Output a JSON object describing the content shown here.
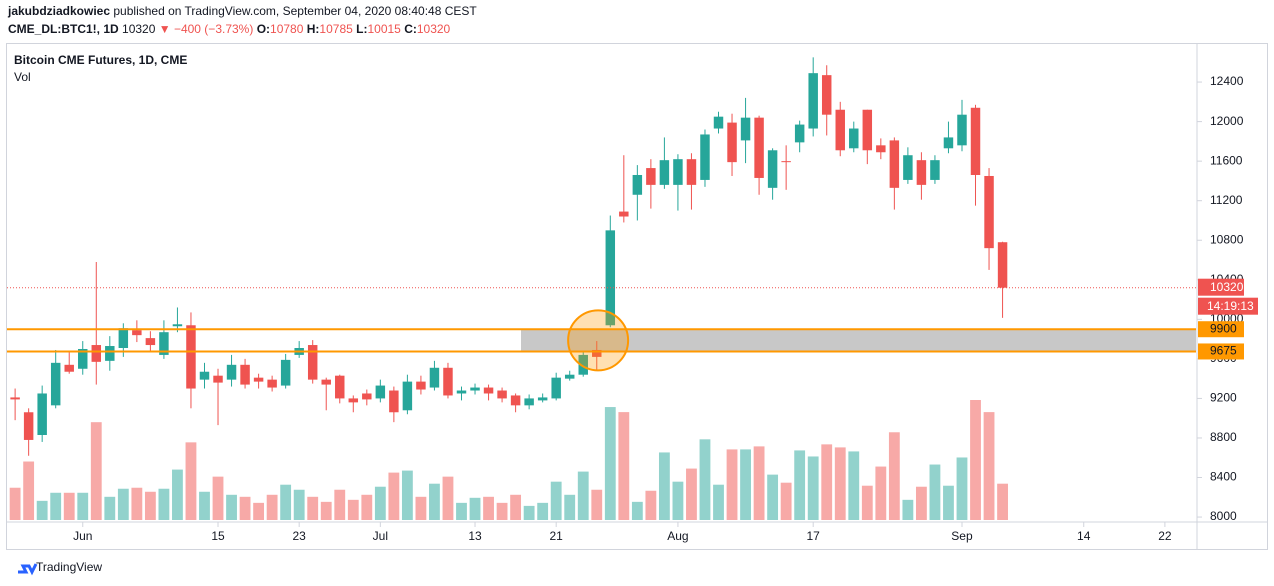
{
  "header": {
    "author": "jakubdziadkowiec",
    "published": "published on TradingView.com, September 04, 2020 08:40:48 CEST",
    "symbol": "CME_DL:BTC1!, 1D",
    "price": "10320",
    "change": "▼ −400 (−3.73%)",
    "ohlc": [
      {
        "label": "O:",
        "value": "10780"
      },
      {
        "label": "H:",
        "value": "10785"
      },
      {
        "label": "L:",
        "value": "10015"
      },
      {
        "label": "C:",
        "value": "10320"
      }
    ]
  },
  "chart_data": {
    "type": "candlestick",
    "title": "Bitcoin CME Futures, 1D, CME",
    "volume_label": "Vol",
    "up_color": "#26a69a",
    "down_color": "#ef5350",
    "open": [
      9210,
      9060,
      8830,
      9130,
      9540,
      9500,
      9740,
      9580,
      9710,
      9890,
      9810,
      9640,
      9930,
      9940,
      9390,
      9430,
      9390,
      9540,
      9410,
      9390,
      9330,
      9640,
      9740,
      9390,
      9430,
      9200,
      9250,
      9200,
      9280,
      9080,
      9370,
      9310,
      9510,
      9250,
      9280,
      9310,
      9280,
      9230,
      9130,
      9180,
      9200,
      9400,
      9440,
      9690,
      9940,
      11090,
      11260,
      11530,
      11360,
      11360,
      11620,
      11410,
      11930,
      11990,
      11810,
      12040,
      11330,
      11600,
      11790,
      11930,
      12470,
      12120,
      11730,
      12120,
      11760,
      11810,
      11410,
      11610,
      11410,
      11730,
      11760,
      12140,
      11450,
      10780
    ],
    "high": [
      9300,
      9100,
      9330,
      9690,
      9680,
      9780,
      10580,
      9830,
      9960,
      9990,
      9880,
      9990,
      10120,
      10070,
      9560,
      9500,
      9640,
      9600,
      9450,
      9430,
      9650,
      9780,
      9790,
      9410,
      9440,
      9230,
      9290,
      9390,
      9320,
      9440,
      9430,
      9580,
      9560,
      9320,
      9350,
      9340,
      9310,
      9250,
      9240,
      9250,
      9460,
      9480,
      9680,
      9780,
      11050,
      11660,
      11560,
      11620,
      11840,
      11670,
      11680,
      11920,
      12100,
      12080,
      12240,
      12060,
      11730,
      11760,
      12010,
      12650,
      12570,
      12200,
      12000,
      12120,
      11830,
      11840,
      11740,
      11690,
      11660,
      12000,
      12220,
      12170,
      11530,
      10785
    ],
    "low": [
      8980,
      8620,
      8760,
      9100,
      9450,
      9440,
      9340,
      9480,
      9620,
      9770,
      9680,
      9600,
      9870,
      9100,
      9300,
      8930,
      9320,
      9300,
      9300,
      9270,
      9300,
      9610,
      9350,
      9080,
      9150,
      9060,
      9130,
      9160,
      8960,
      9040,
      9240,
      9280,
      9200,
      9180,
      9240,
      9180,
      9160,
      9060,
      9090,
      9160,
      9180,
      9380,
      9420,
      9490,
      9920,
      10980,
      11000,
      11120,
      11320,
      11100,
      11110,
      11340,
      11880,
      11450,
      11580,
      11260,
      11210,
      11310,
      11690,
      11850,
      11860,
      11650,
      11690,
      11570,
      11620,
      11110,
      11370,
      11210,
      11370,
      11680,
      11700,
      11150,
      10500,
      10015
    ],
    "close": [
      9190,
      8780,
      9250,
      9560,
      9470,
      9700,
      9570,
      9730,
      9910,
      9840,
      9740,
      9870,
      9950,
      9300,
      9470,
      9360,
      9540,
      9340,
      9370,
      9310,
      9590,
      9710,
      9390,
      9340,
      9200,
      9160,
      9190,
      9330,
      9060,
      9370,
      9290,
      9510,
      9230,
      9280,
      9310,
      9250,
      9200,
      9130,
      9200,
      9210,
      9410,
      9440,
      9640,
      9620,
      10900,
      11040,
      11460,
      11360,
      11610,
      11620,
      11360,
      11870,
      12050,
      11590,
      12040,
      11430,
      11710,
      11590,
      11970,
      12490,
      12070,
      11710,
      11930,
      11710,
      11690,
      11330,
      11660,
      11360,
      11610,
      11840,
      12070,
      11460,
      10720,
      10320
    ],
    "volume": [
      32,
      58,
      19,
      27,
      27,
      27,
      97,
      23,
      31,
      32,
      28,
      31,
      50,
      77,
      28,
      43,
      25,
      23,
      17,
      25,
      35,
      30,
      23,
      18,
      30,
      20,
      25,
      33,
      47,
      49,
      23,
      36,
      43,
      17,
      22,
      23,
      17,
      25,
      14,
      17,
      38,
      25,
      48,
      30,
      112,
      107,
      18,
      29,
      67,
      38,
      51,
      80,
      35,
      70,
      70,
      73,
      45,
      37,
      69,
      63,
      75,
      72,
      68,
      34,
      53,
      87,
      20,
      33,
      55,
      34,
      62,
      119,
      107,
      36
    ],
    "xlim": [
      -0.6,
      87.3
    ],
    "xticks": [
      {
        "value": 5,
        "label": "Jun"
      },
      {
        "value": 15,
        "label": "15"
      },
      {
        "value": 21,
        "label": "23"
      },
      {
        "value": 27,
        "label": "Jul"
      },
      {
        "value": 34,
        "label": "13"
      },
      {
        "value": 40,
        "label": "21"
      },
      {
        "value": 49,
        "label": "Aug"
      },
      {
        "value": 59,
        "label": "17"
      },
      {
        "value": 70,
        "label": "Sep"
      },
      {
        "value": 79,
        "label": "14"
      },
      {
        "value": 85,
        "label": "22"
      }
    ],
    "ylim": [
      7950,
      12785
    ],
    "yticks": [
      8000,
      8400,
      8800,
      9200,
      9600,
      10000,
      10400,
      10800,
      11200,
      11600,
      12000,
      12400
    ],
    "levels": [
      9900,
      9675
    ],
    "level_color": "#ff9800",
    "last_price": 10320,
    "countdown": "14:19:13"
  },
  "footer": {
    "brand": "TradingView"
  }
}
